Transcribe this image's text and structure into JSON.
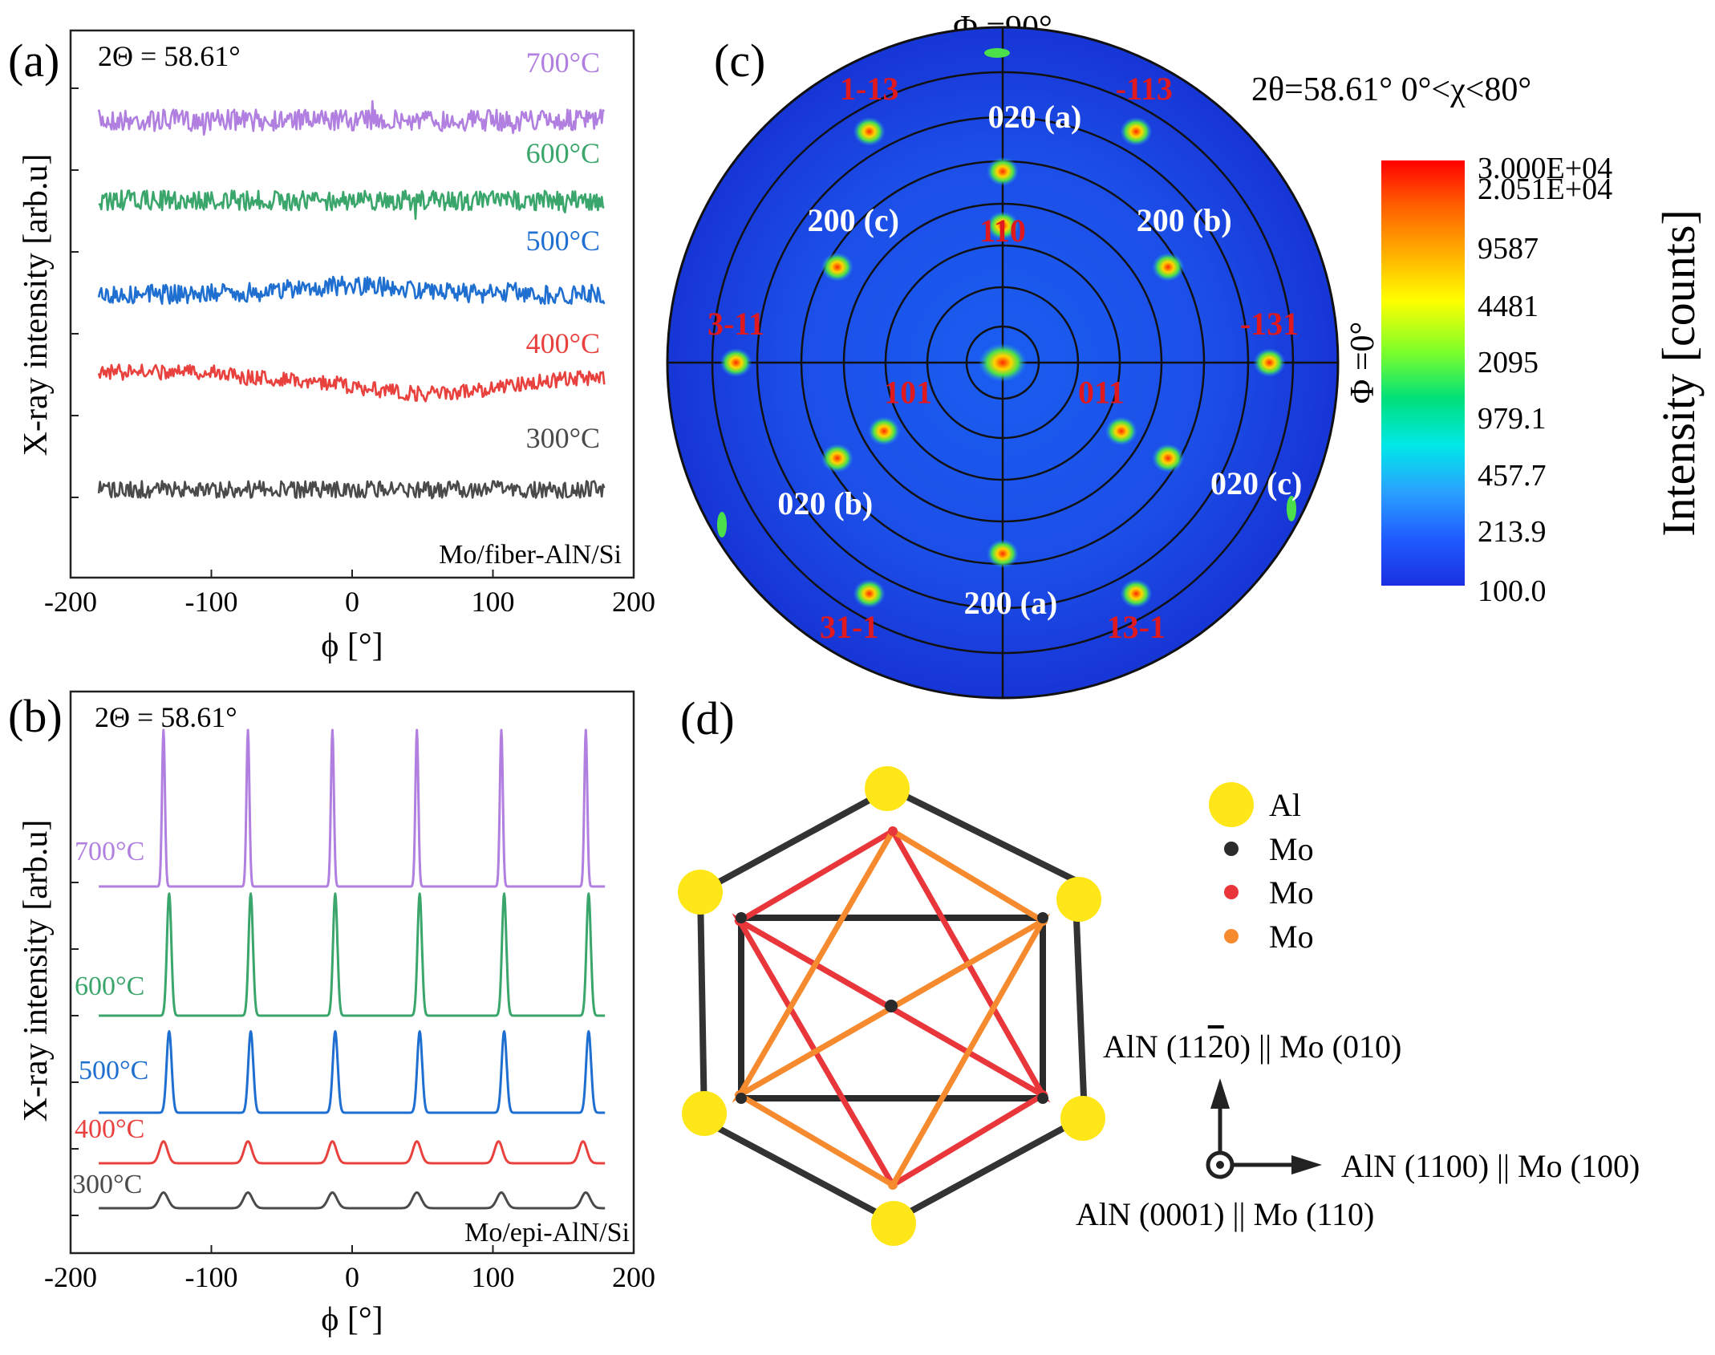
{
  "chart_data": [
    {
      "panel": "(a)",
      "type": "line",
      "title": "2Θ = 58.61°",
      "annotation": "Mo/fiber-AlN/Si",
      "xlabel": "ϕ [°]",
      "ylabel": "X-ray intensity [arb.u]",
      "xlim": [
        -200,
        200
      ],
      "xticks": [
        "-200",
        "-100",
        "0",
        "100",
        "200"
      ],
      "series": [
        {
          "name": "700°C",
          "color": "#b07fe0",
          "offset": 4,
          "noise": 0.28,
          "shape": "flat",
          "amp": 0
        },
        {
          "name": "600°C",
          "color": "#3aa66b",
          "offset": 3,
          "noise": 0.26,
          "shape": "flat",
          "amp": 0
        },
        {
          "name": "500°C",
          "color": "#1f6fd1",
          "offset": 2,
          "noise": 0.25,
          "shape": "bump",
          "amp": 0.18
        },
        {
          "name": "400°C",
          "color": "#e8413e",
          "offset": 1,
          "noise": 0.2,
          "shape": "dip",
          "amp": 0.35
        },
        {
          "name": "300°C",
          "color": "#4a4a4a",
          "offset": 0,
          "noise": 0.22,
          "shape": "flat",
          "amp": 0
        }
      ]
    },
    {
      "panel": "(b)",
      "type": "line",
      "title": "2Θ = 58.61°",
      "annotation": "Mo/epi-AlN/Si",
      "xlabel": "ϕ [°]",
      "ylabel": "X-ray intensity [arb.u]",
      "xlim": [
        -200,
        200
      ],
      "xticks": [
        "-200",
        "-100",
        "0",
        "100",
        "200"
      ],
      "series": [
        {
          "name": "700°C",
          "color": "#b07fe0",
          "peaks": [
            -134,
            -74,
            -14,
            46,
            106,
            166
          ],
          "height": 1.0,
          "width": 1.5
        },
        {
          "name": "600°C",
          "color": "#3aa66b",
          "peaks": [
            -130,
            -72,
            -12,
            48,
            108,
            168
          ],
          "height": 0.78,
          "width": 2.2
        },
        {
          "name": "500°C",
          "color": "#1f6fd1",
          "peaks": [
            -130,
            -72,
            -12,
            48,
            108,
            168
          ],
          "height": 0.52,
          "width": 2.5
        },
        {
          "name": "400°C",
          "color": "#e8413e",
          "peaks": [
            -134,
            -74,
            -14,
            46,
            104,
            164
          ],
          "height": 0.14,
          "width": 4
        },
        {
          "name": "300°C",
          "color": "#4a4a4a",
          "peaks": [
            -134,
            -74,
            -14,
            46,
            106,
            166
          ],
          "height": 0.1,
          "width": 4.5
        }
      ]
    },
    {
      "panel": "(c)",
      "type": "heatmap",
      "subtype": "pole figure",
      "title": "2θ=58.61°  0°<χ<80°",
      "phi_top_label": "Φ =90°",
      "phi_right_label": "Φ =0°",
      "colorbar_label": "Intensity [counts]",
      "colorbar_ticks": [
        "3.000E+04",
        "2.051E+04",
        "9587",
        "4481",
        "2095",
        "979.1",
        "457.7",
        "213.9",
        "100.0"
      ],
      "poles": [
        {
          "hkl": "020 (a)",
          "chi": 53,
          "phi": 90,
          "color": "white"
        },
        {
          "hkl": "200 (a)",
          "chi": 53,
          "phi": 270,
          "color": "white"
        },
        {
          "hkl": "200 (b)",
          "chi": 53,
          "phi": 30,
          "color": "white"
        },
        {
          "hkl": "200 (c)",
          "chi": 53,
          "phi": 150,
          "color": "white"
        },
        {
          "hkl": "020 (b)",
          "chi": 53,
          "phi": 210,
          "color": "white"
        },
        {
          "hkl": "020 (c)",
          "chi": 53,
          "phi": 330,
          "color": "white"
        },
        {
          "hkl": "110",
          "chi": 38,
          "phi": 90,
          "color": "red"
        },
        {
          "hkl": "101",
          "chi": 38,
          "phi": 210,
          "color": "red"
        },
        {
          "hkl": "011",
          "chi": 38,
          "phi": 330,
          "color": "red"
        },
        {
          "hkl": "1-13",
          "chi": 74,
          "phi": 120,
          "color": "red"
        },
        {
          "hkl": "-113",
          "chi": 74,
          "phi": 60,
          "color": "red"
        },
        {
          "hkl": "3-11",
          "chi": 74,
          "phi": 180,
          "color": "red"
        },
        {
          "hkl": "-131",
          "chi": 74,
          "phi": 0,
          "color": "red"
        },
        {
          "hkl": "31-1",
          "chi": 74,
          "phi": 240,
          "color": "red"
        },
        {
          "hkl": "13-1",
          "chi": 74,
          "phi": 300,
          "color": "red"
        }
      ]
    },
    {
      "panel": "(d)",
      "type": "diagram",
      "legend": [
        {
          "label": "Al",
          "color": "#ffe619"
        },
        {
          "label": "Mo",
          "color": "#2b2b2b"
        },
        {
          "label": "Mo",
          "color": "#e8363b"
        },
        {
          "label": "Mo",
          "color": "#f58a2e"
        }
      ],
      "axis_up": "AlN (11",
      "axis_up_bar": "2",
      "axis_up_rest": "0) || Mo (010)",
      "axis_right": "AlN (1100) || Mo (100)",
      "axis_out": "AlN (0001) || Mo (110)"
    }
  ]
}
